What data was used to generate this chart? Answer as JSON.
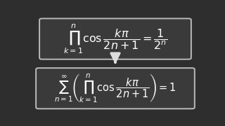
{
  "bg_color": "#2e2e2e",
  "box_edge_color": "#bbbbbb",
  "box_face_color": "#3a3a3a",
  "text_color": "#ffffff",
  "arrow_color": "#dddddd",
  "eq1": "$\\prod_{k=1}^{n} \\cos \\dfrac{k\\pi}{2n+1} = \\dfrac{1}{2^n}$",
  "eq2": "$\\sum_{n=1}^{\\infty} \\left( \\prod_{k=1}^{n} \\cos \\dfrac{k\\pi}{2n+1} \\right) = 1$",
  "fig_width": 3.2,
  "fig_height": 1.8,
  "dpi": 100
}
